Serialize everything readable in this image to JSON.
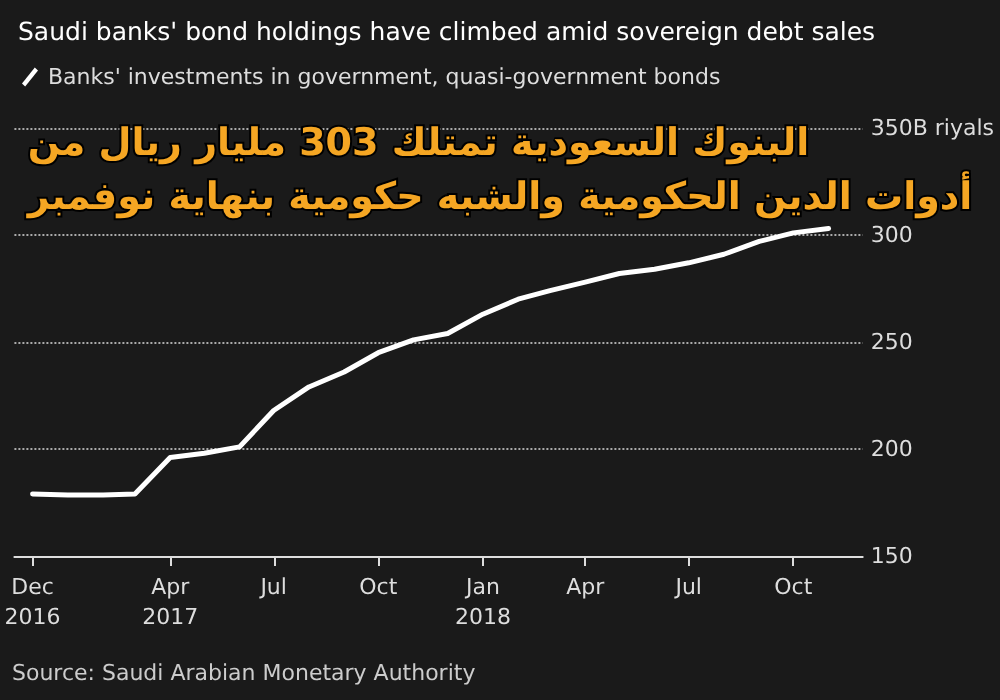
{
  "chart_data": {
    "type": "line",
    "title": "Saudi banks' bond holdings have climbed amid sovereign debt sales",
    "x": [
      "2016-12",
      "2017-01",
      "2017-02",
      "2017-03",
      "2017-04",
      "2017-05",
      "2017-06",
      "2017-07",
      "2017-08",
      "2017-09",
      "2017-10",
      "2017-11",
      "2017-12",
      "2018-01",
      "2018-02",
      "2018-03",
      "2018-04",
      "2018-05",
      "2018-06",
      "2018-07",
      "2018-08",
      "2018-09",
      "2018-10",
      "2018-11"
    ],
    "series": [
      {
        "name": "Banks' investments in government, quasi-government bonds",
        "color": "#ffffff",
        "values": [
          179,
          178.5,
          178.5,
          179,
          196,
          198,
          201,
          218,
          229,
          236,
          245,
          251,
          254,
          263,
          270,
          274,
          278,
          282,
          284,
          287,
          291,
          297,
          301,
          303
        ]
      }
    ],
    "xlim": [
      "2016-11-15",
      "2018-12"
    ],
    "xticks": [
      {
        "value": "2016-12",
        "label": "Dec\n2016"
      },
      {
        "value": "2017-04",
        "label": "Apr\n2017"
      },
      {
        "value": "2017-07",
        "label": "Jul"
      },
      {
        "value": "2017-10",
        "label": "Oct"
      },
      {
        "value": "2018-01",
        "label": "Jan\n2018"
      },
      {
        "value": "2018-04",
        "label": "Apr"
      },
      {
        "value": "2018-07",
        "label": "Jul"
      },
      {
        "value": "2018-10",
        "label": "Oct"
      }
    ],
    "ylim": [
      150,
      350
    ],
    "yticks": [
      150,
      200,
      250,
      300,
      {
        "value": 350,
        "label": "350B riyals"
      }
    ],
    "grid": "y",
    "legend": "top left",
    "marker": "none",
    "line_style": "solid",
    "annotations": [
      "البنوك السعودية تمتلك 303 مليار ريال من\nأدوات الدين الحكومية والشبه حكومية بنهاية نوفمبر",
      "Source: Saudi Arabian Monetary Authority"
    ]
  }
}
